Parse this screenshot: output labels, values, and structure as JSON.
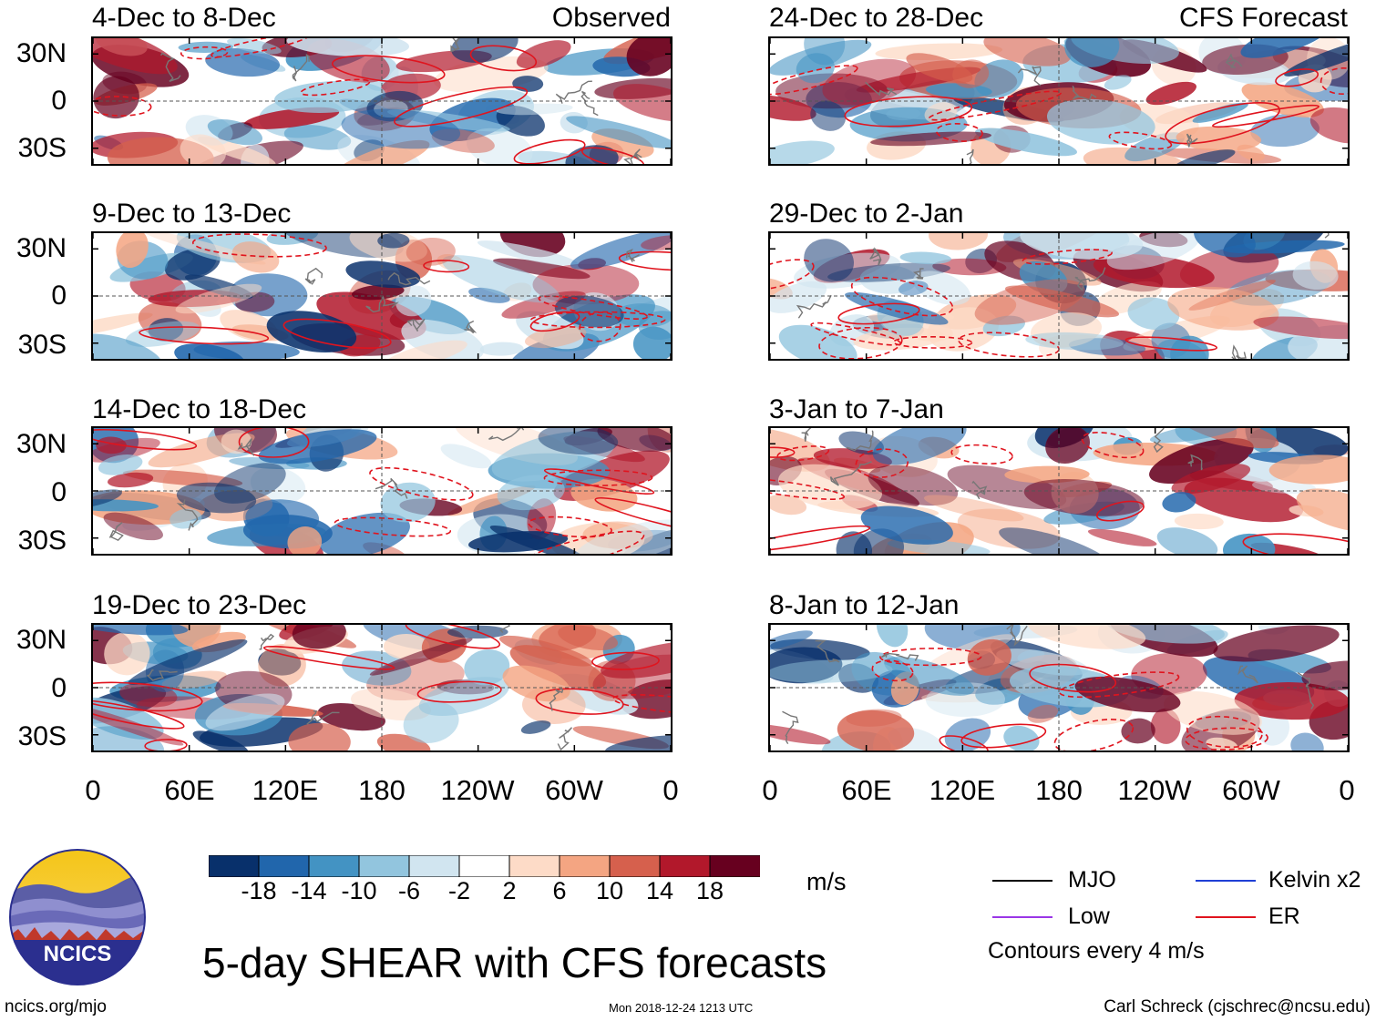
{
  "figure_title": "5-day SHEAR with CFS forecasts",
  "left_column_tag": "Observed",
  "right_column_tag": "CFS Forecast",
  "colorbar": {
    "units": "m/s",
    "colors": [
      "#08306b",
      "#2166ac",
      "#4393c3",
      "#92c5de",
      "#d1e5f0",
      "#ffffff",
      "#fddbc7",
      "#f4a582",
      "#d6604d",
      "#b2182b",
      "#67001f"
    ],
    "tick_labels": [
      "-18",
      "-14",
      "-10",
      "-6",
      "-2",
      "2",
      "6",
      "10",
      "14",
      "18"
    ]
  },
  "legend": {
    "items": [
      {
        "name": "MJO",
        "color": "#000000"
      },
      {
        "name": "Kelvin x2",
        "color": "#1f3fd6"
      },
      {
        "name": "Low",
        "color": "#9a36e6"
      },
      {
        "name": "ER",
        "color": "#e0141e"
      }
    ],
    "note": "Contours every 4 m/s"
  },
  "logo": {
    "text": "NCICS"
  },
  "footer": {
    "url": "ncics.org/mjo",
    "timestamp": "Mon 2018-12-24 1213 UTC",
    "credit": "Carl Schreck (cjschrec@ncsu.edu)"
  },
  "chart_data": {
    "type": "heatmap",
    "variable": "5-day vertical wind shear anomaly",
    "units": "m/s",
    "x_ticks": [
      "0",
      "60E",
      "120E",
      "180",
      "120W",
      "60W",
      "0"
    ],
    "x_tick_lon": [
      0,
      60,
      120,
      180,
      240,
      300,
      360
    ],
    "y_ticks": [
      "30N",
      "0",
      "30S"
    ],
    "y_tick_lat": [
      30,
      0,
      -30
    ],
    "xlim_lon": [
      0,
      360
    ],
    "ylim_lat": [
      -40,
      40
    ],
    "contour_interval": 4,
    "panels": [
      {
        "label": "4-Dec to 8-Dec",
        "source": "Observed"
      },
      {
        "label": "9-Dec to 13-Dec",
        "source": "Observed"
      },
      {
        "label": "14-Dec to 18-Dec",
        "source": "Observed"
      },
      {
        "label": "19-Dec to 23-Dec",
        "source": "Observed"
      },
      {
        "label": "24-Dec to 28-Dec",
        "source": "CFS Forecast"
      },
      {
        "label": "29-Dec to 2-Jan",
        "source": "CFS Forecast"
      },
      {
        "label": "3-Jan to 7-Jan",
        "source": "CFS Forecast"
      },
      {
        "label": "8-Jan to 12-Jan",
        "source": "CFS Forecast"
      }
    ]
  }
}
